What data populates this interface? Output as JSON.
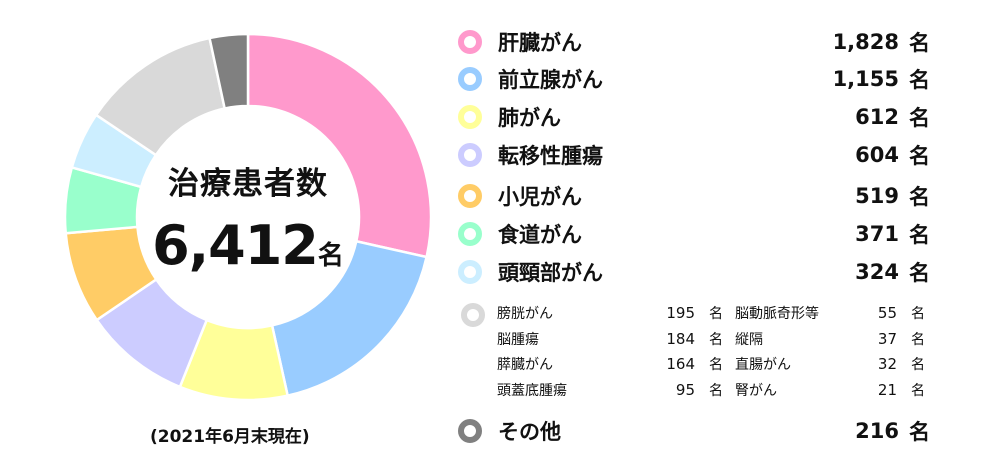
{
  "chart_data": {
    "type": "pie",
    "title": "治療患者数",
    "total": "6,412",
    "total_unit": "名",
    "note": "(2021年6月末現在)",
    "unit": "名",
    "main_series": [
      {
        "label": "肝臓がん",
        "value": 1828,
        "display": "1,828",
        "color": "#ff99cc"
      },
      {
        "label": "前立腺がん",
        "value": 1155,
        "display": "1,155",
        "color": "#99ccff"
      },
      {
        "label": "肺がん",
        "value": 612,
        "display": "612",
        "color": "#ffff99"
      },
      {
        "label": "転移性腫瘍",
        "value": 604,
        "display": "604",
        "color": "#ccccff"
      },
      {
        "label": "小児がん",
        "value": 519,
        "display": "519",
        "color": "#ffcc66"
      },
      {
        "label": "食道がん",
        "value": 371,
        "display": "371",
        "color": "#99ffcc"
      },
      {
        "label": "頭頸部がん",
        "value": 324,
        "display": "324",
        "color": "#cceeff"
      }
    ],
    "grouped": {
      "color": "#d9d9d9",
      "value": 783,
      "items": [
        {
          "label": "膀胱がん",
          "value": "195"
        },
        {
          "label": "脳腫瘍",
          "value": "184"
        },
        {
          "label": "膵臓がん",
          "value": "164"
        },
        {
          "label": "頭蓋底腫瘍",
          "value": "95"
        },
        {
          "label": "脳動脈奇形等",
          "value": "55"
        },
        {
          "label": "縦隔",
          "value": "37"
        },
        {
          "label": "直腸がん",
          "value": "32"
        },
        {
          "label": "腎がん",
          "value": "21"
        }
      ]
    },
    "other": {
      "label": "その他",
      "value": 216,
      "display": "216",
      "color": "#808080"
    }
  }
}
